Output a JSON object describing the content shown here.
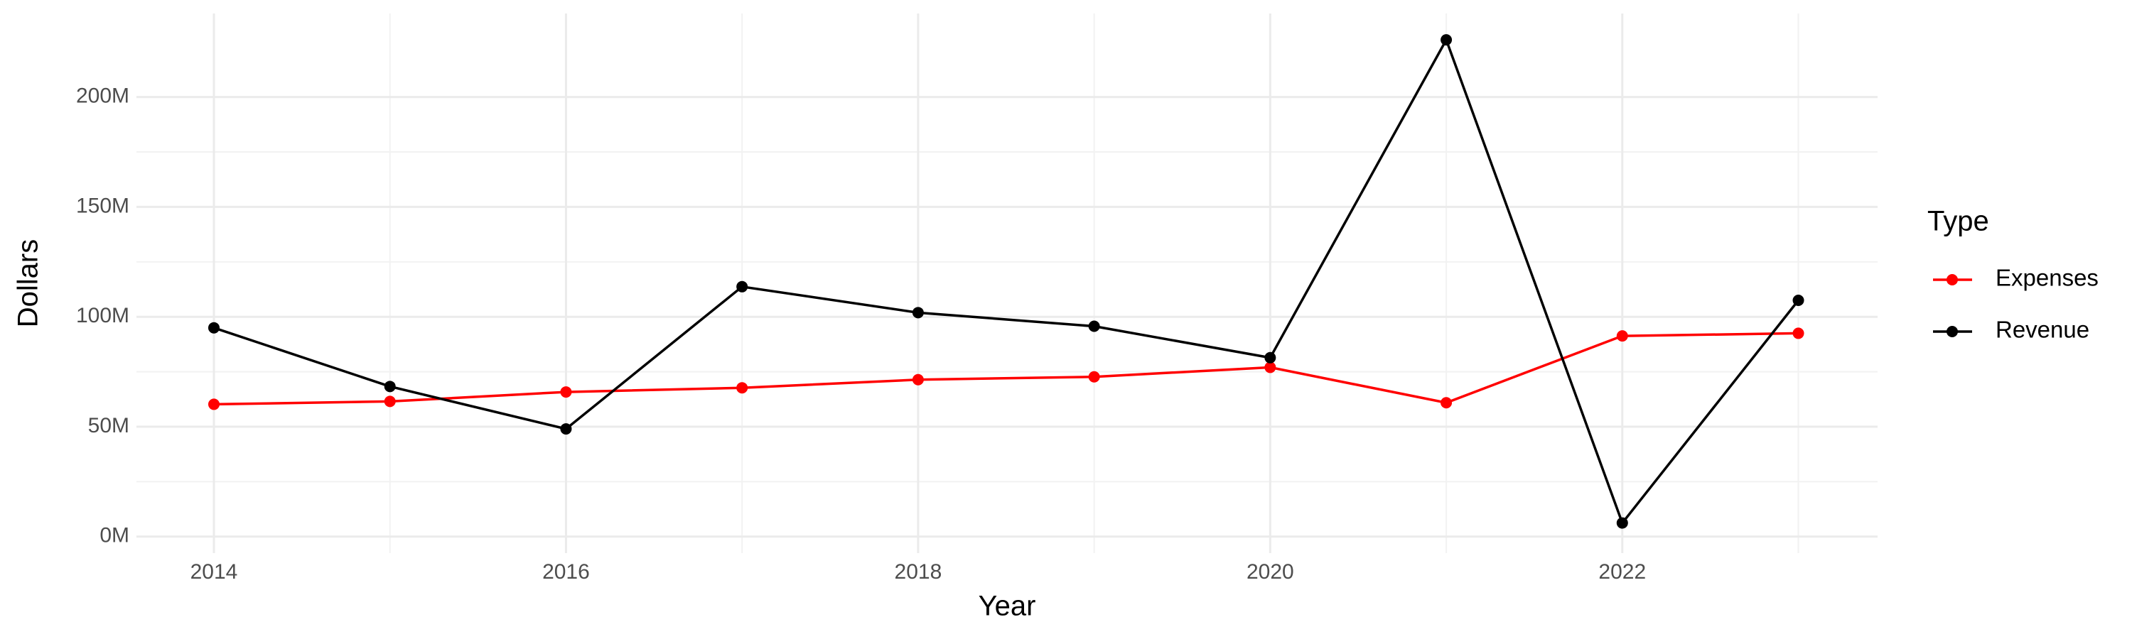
{
  "chart_data": {
    "type": "line",
    "x_label": "Year",
    "y_label": "Dollars",
    "legend_title": "Type",
    "x": [
      2014,
      2015,
      2016,
      2017,
      2018,
      2019,
      2020,
      2021,
      2022,
      2023
    ],
    "series": [
      {
        "name": "Expenses",
        "color": "#ff0000",
        "values": [
          60200000,
          61500000,
          65800000,
          67700000,
          71400000,
          72700000,
          77000000,
          60900000,
          91300000,
          92500000
        ]
      },
      {
        "name": "Revenue",
        "color": "#000000",
        "values": [
          95000000,
          68300000,
          49000000,
          113700000,
          101900000,
          95700000,
          81400000,
          226000000,
          6200000,
          107500000
        ]
      }
    ],
    "xlim": [
      2013.56,
      2023.45
    ],
    "xticks": [
      2014,
      2016,
      2018,
      2020,
      2022
    ],
    "ylim": [
      -7500000,
      238000000
    ],
    "yticks": [
      {
        "value": 0,
        "label": "0M"
      },
      {
        "value": 50000000,
        "label": "50M"
      },
      {
        "value": 100000000,
        "label": "100M"
      },
      {
        "value": 150000000,
        "label": "150M"
      },
      {
        "value": 200000000,
        "label": "200M"
      }
    ],
    "grid": true,
    "legend": "right"
  }
}
